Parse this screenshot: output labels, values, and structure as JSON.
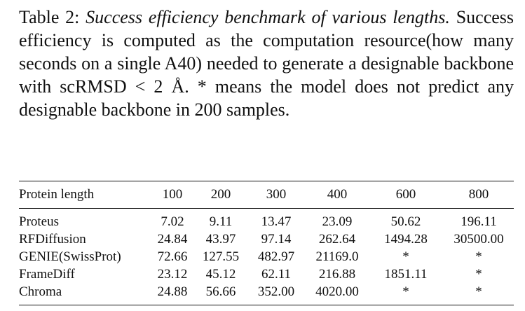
{
  "caption": {
    "label": "Table 2: ",
    "title": "Success efficiency benchmark of various lengths.",
    "body": "Success efficiency is computed as the computation re­source(how many seconds on a single A40) needed to gen­erate a designable backbone with scRMSD < 2 Å. * means the model does not predict any designable backbone in 200 samples."
  },
  "table": {
    "header": [
      "Protein length",
      "100",
      "200",
      "300",
      "400",
      "600",
      "800"
    ],
    "rows": [
      [
        "Proteus",
        "7.02",
        "9.11",
        "13.47",
        "23.09",
        "50.62",
        "196.11"
      ],
      [
        "RFDiffusion",
        "24.84",
        "43.97",
        "97.14",
        "262.64",
        "1494.28",
        "30500.00"
      ],
      [
        "GENIE(SwissProt)",
        "72.66",
        "127.55",
        "482.97",
        "21169.0",
        "*",
        "*"
      ],
      [
        "FrameDiff",
        "23.12",
        "45.12",
        "62.11",
        "216.88",
        "1851.11",
        "*"
      ],
      [
        "Chroma",
        "24.88",
        "56.66",
        "352.00",
        "4020.00",
        "*",
        "*"
      ]
    ]
  }
}
